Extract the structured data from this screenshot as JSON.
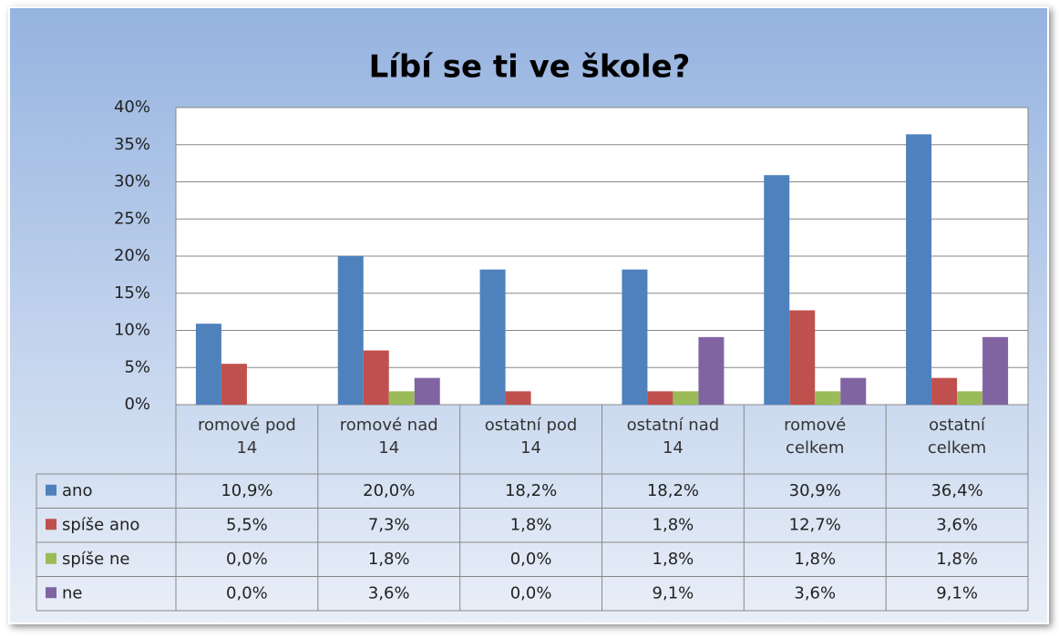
{
  "chart_data": {
    "type": "bar",
    "title": "Líbí se ti ve škole?",
    "categories": [
      "romové pod 14",
      "romové nad 14",
      "ostatní pod 14",
      "ostatní nad 14",
      "romové celkem",
      "ostatní celkem"
    ],
    "series": [
      {
        "name": "ano",
        "color": "#4f81bd",
        "values": [
          10.9,
          20.0,
          18.2,
          18.2,
          30.9,
          36.4
        ],
        "value_labels": [
          "10,9%",
          "20,0%",
          "18,2%",
          "18,2%",
          "30,9%",
          "36,4%"
        ]
      },
      {
        "name": "spíše ano",
        "color": "#c0504d",
        "values": [
          5.5,
          7.3,
          1.8,
          1.8,
          12.7,
          3.6
        ],
        "value_labels": [
          "5,5%",
          "7,3%",
          "1,8%",
          "1,8%",
          "12,7%",
          "3,6%"
        ]
      },
      {
        "name": "spíše ne",
        "color": "#9bbb59",
        "values": [
          0.0,
          1.8,
          0.0,
          1.8,
          1.8,
          1.8
        ],
        "value_labels": [
          "0,0%",
          "1,8%",
          "0,0%",
          "1,8%",
          "1,8%",
          "1,8%"
        ]
      },
      {
        "name": "ne",
        "color": "#8064a2",
        "values": [
          0.0,
          3.6,
          0.0,
          9.1,
          3.6,
          9.1
        ],
        "value_labels": [
          "0,0%",
          "3,6%",
          "0,0%",
          "9,1%",
          "3,6%",
          "9,1%"
        ]
      }
    ],
    "ylim": [
      0,
      40
    ],
    "yticks": [
      {
        "value": 0,
        "label": "0%"
      },
      {
        "value": 5,
        "label": "5%"
      },
      {
        "value": 10,
        "label": "10%"
      },
      {
        "value": 15,
        "label": "15%"
      },
      {
        "value": 20,
        "label": "20%"
      },
      {
        "value": 25,
        "label": "25%"
      },
      {
        "value": 30,
        "label": "30%"
      },
      {
        "value": 35,
        "label": "35%"
      },
      {
        "value": 40,
        "label": "40%"
      }
    ],
    "grid": true
  }
}
